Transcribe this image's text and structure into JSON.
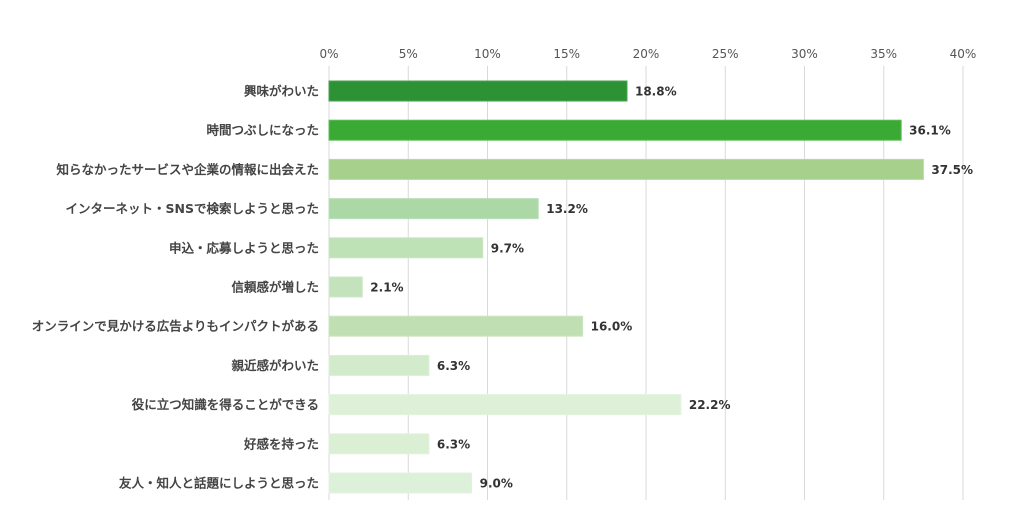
{
  "chart_data": {
    "type": "bar",
    "orientation": "horizontal",
    "categories": [
      "興味がわいた",
      "時間つぶしになった",
      "知らなかったサービスや企業の情報に出会えた",
      "インターネット・SNSで検索しようと思った",
      "申込・応募しようと思った",
      "信頼感が増した",
      "オンラインで見かける広告よりもインパクトがある",
      "親近感がわいた",
      "役に立つ知識を得ることができる",
      "好感を持った",
      "友人・知人と話題にしようと思った"
    ],
    "values": [
      18.8,
      36.1,
      37.5,
      13.2,
      9.7,
      2.1,
      16.0,
      6.3,
      22.2,
      6.3,
      9.0
    ],
    "value_labels": [
      "18.8%",
      "36.1%",
      "37.5%",
      "13.2%",
      "9.7%",
      "2.1%",
      "16.0%",
      "6.3%",
      "22.2%",
      "6.3%",
      "9.0%"
    ],
    "xlim": [
      0,
      40
    ],
    "ticks": [
      0,
      5,
      10,
      15,
      20,
      25,
      30,
      35,
      40
    ],
    "tick_labels": [
      "0%",
      "5%",
      "10%",
      "15%",
      "20%",
      "25%",
      "30%",
      "35%",
      "40%"
    ],
    "axis_position": "top",
    "grid": true,
    "title": "",
    "xlabel": "",
    "ylabel": "",
    "bar_colors": [
      "#2d9234",
      "#3aaa35",
      "#a6d08c",
      "#acd8a6",
      "#bfe1b6",
      "#c4e3bd",
      "#c0e0b4",
      "#d2ebcb",
      "#ddf0d8",
      "#dbefd5",
      "#ddf0d9"
    ],
    "bar_stroke_colors": [
      "#4aa250",
      "#5cbc56",
      "#b6d99f",
      "#b9debb",
      "#cbe6c4",
      "#cfe7c9",
      "#cce5c2",
      "#dbefd5",
      "#e4f3e0",
      "#e2f2dd",
      "#e4f3e0"
    ]
  }
}
